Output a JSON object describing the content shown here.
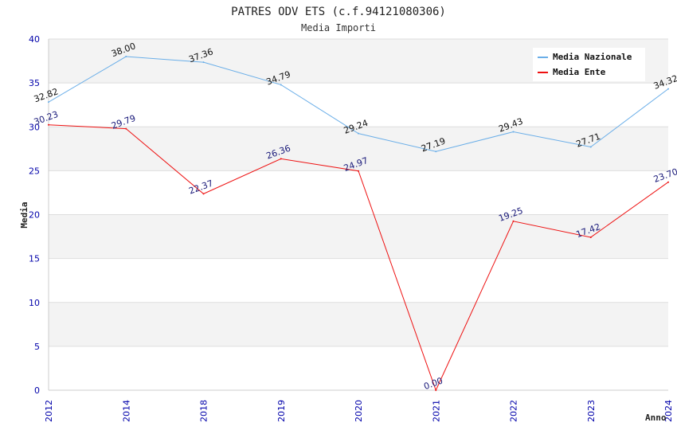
{
  "chart_data": {
    "type": "line",
    "title": "PATRES ODV ETS (c.f.94121080306)",
    "subtitle": "Media Importi",
    "xlabel": "Anno",
    "ylabel": "Media",
    "categories": [
      "2012",
      "2014",
      "2018",
      "2019",
      "2020",
      "2021",
      "2022",
      "2023",
      "2024"
    ],
    "ylim": [
      0,
      40
    ],
    "yticks": [
      0,
      5,
      10,
      15,
      20,
      25,
      30,
      35,
      40
    ],
    "grid": "horizontal bands",
    "legend_position": "top-right",
    "series": [
      {
        "name": "Media Nazionale",
        "color": "#6aaee8",
        "label_color": "#111111",
        "values": [
          32.82,
          38.0,
          37.36,
          34.79,
          29.24,
          27.19,
          29.43,
          27.71,
          34.32
        ],
        "labels": [
          "32.82",
          "38.00",
          "37.36",
          "34.79",
          "29.24",
          "27.19",
          "29.43",
          "27.71",
          "34.32"
        ]
      },
      {
        "name": "Media Ente",
        "color": "#ee1111",
        "label_color": "#1a1a7a",
        "values": [
          30.23,
          29.79,
          22.37,
          26.36,
          24.97,
          0.0,
          19.25,
          17.42,
          23.7
        ],
        "labels": [
          "30.23",
          "29.79",
          "22.37",
          "26.36",
          "24.97",
          "0.00",
          "19.25",
          "17.42",
          "23.70"
        ]
      }
    ],
    "colors": {
      "band": "#f3f3f3",
      "gridline": "#dddddd",
      "tick_text": "#0000aa"
    }
  }
}
